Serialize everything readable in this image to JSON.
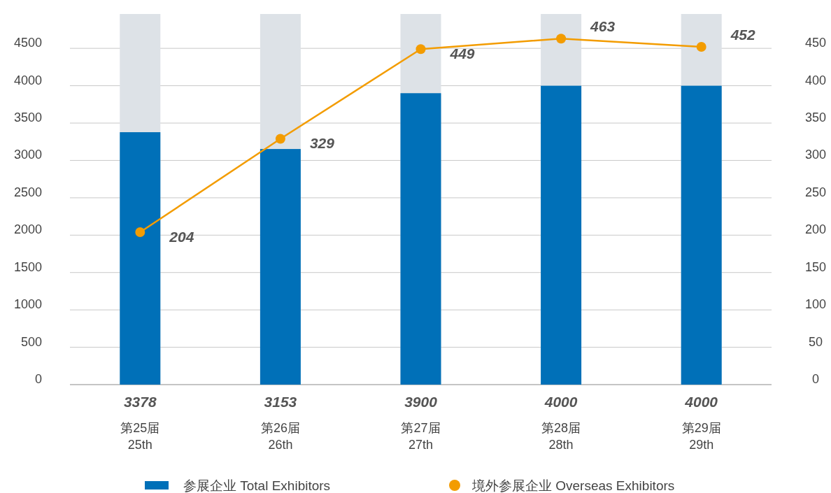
{
  "chart_data": {
    "type": "bar",
    "categories": [
      "第25届\n25th",
      "第26届\n26th",
      "第27届\n27th",
      "第28届\n28th",
      "第29届\n29th"
    ],
    "series": [
      {
        "name": "参展企业  Total Exhibitors",
        "color": "#0070b8",
        "values": [
          3378,
          3153,
          3900,
          4000,
          4000
        ]
      },
      {
        "name": "境外参展企业  Overseas Exhibitors",
        "type": "line",
        "axis": "y2",
        "color": "#f39c00",
        "values": [
          204,
          329,
          449,
          463,
          452
        ]
      }
    ],
    "ylim": [
      0,
      4960
    ],
    "yticks": [
      0,
      500,
      1000,
      1500,
      2000,
      2500,
      3000,
      3500,
      4000,
      4500
    ],
    "y2lim": [
      0,
      496
    ],
    "y2ticks": [
      0,
      50,
      100,
      150,
      200,
      250,
      300,
      350,
      400,
      450
    ],
    "grid": "y",
    "legend": "bottom",
    "marker": "circle",
    "data_labels": true
  }
}
